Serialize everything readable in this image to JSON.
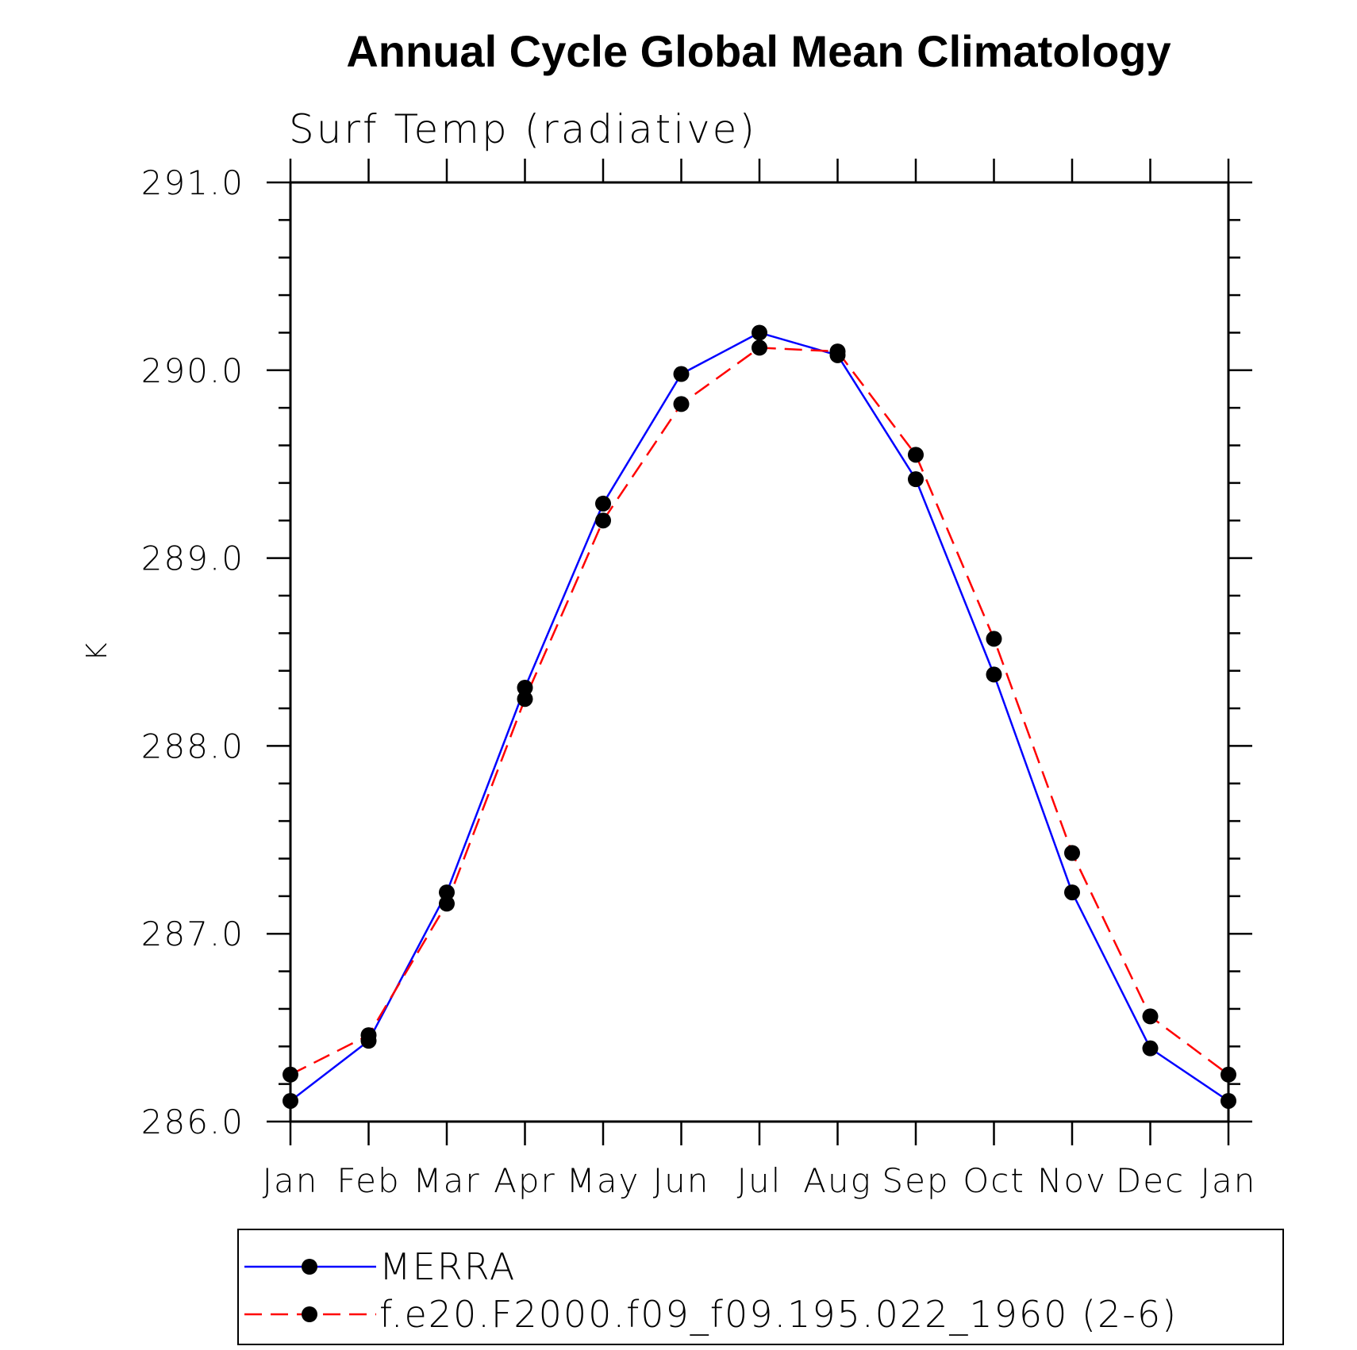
{
  "chart_data": {
    "type": "line",
    "title": "Annual Cycle Global Mean Climatology",
    "subtitle": "Surf Temp (radiative)",
    "xlabel": "",
    "ylabel": "K",
    "categories": [
      "Jan",
      "Feb",
      "Mar",
      "Apr",
      "May",
      "Jun",
      "Jul",
      "Aug",
      "Sep",
      "Oct",
      "Nov",
      "Dec",
      "Jan"
    ],
    "ylim": [
      286.0,
      291.0
    ],
    "yticks": [
      "286.0",
      "287.0",
      "288.0",
      "289.0",
      "290.0",
      "291.0"
    ],
    "y_minor_step": 0.2,
    "grid": false,
    "legend_position": "bottom",
    "series": [
      {
        "name": "MERRA",
        "color": "#0000ff",
        "line_style": "solid",
        "marker": "filled-circle",
        "values": [
          286.11,
          286.43,
          287.22,
          288.31,
          289.29,
          289.98,
          290.2,
          290.08,
          289.42,
          288.38,
          287.22,
          286.39,
          286.11
        ]
      },
      {
        "name": "f.e20.F2000.f09_f09.195.022_1960 (2-6)",
        "color": "#ff0000",
        "line_style": "dashed",
        "marker": "filled-circle",
        "values": [
          286.25,
          286.46,
          287.16,
          288.25,
          289.2,
          289.82,
          290.12,
          290.1,
          289.55,
          288.57,
          287.43,
          286.56,
          286.25
        ]
      }
    ]
  }
}
